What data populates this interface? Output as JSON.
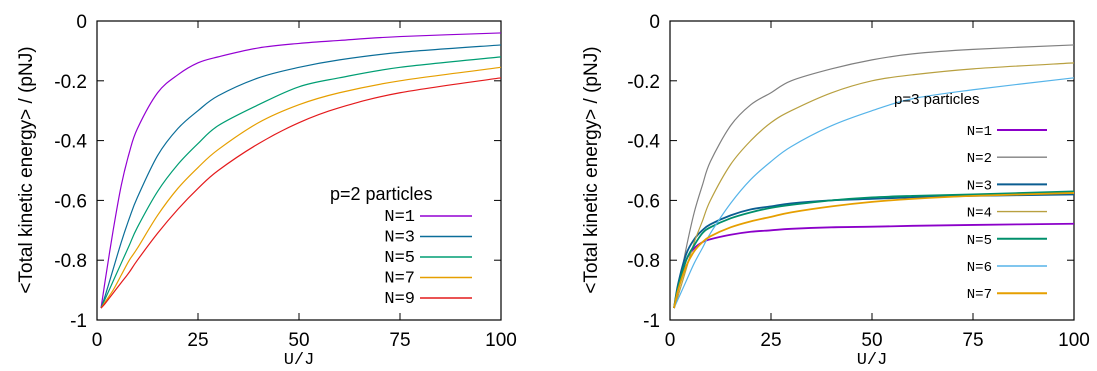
{
  "chart_data": [
    {
      "type": "line",
      "xlabel": "U/J",
      "ylabel": "<Total kinetic energy> / (pNJ)",
      "xlim": [
        0,
        100
      ],
      "ylim": [
        -1,
        0
      ],
      "xticks": [
        "0",
        "25",
        "50",
        "75",
        "100"
      ],
      "yticks": [
        "0",
        "-0.2",
        "-0.4",
        "-0.6",
        "-0.8",
        "-1"
      ],
      "legend_title": "p=2 particles",
      "legend_position": "lower-right",
      "grid": false,
      "series": [
        {
          "name": "N=1",
          "color": "#9400d3",
          "x": [
            1,
            2,
            4,
            6,
            8,
            10,
            15,
            20,
            25,
            30,
            40,
            50,
            60,
            75,
            100
          ],
          "y": [
            -0.96,
            -0.87,
            -0.7,
            -0.55,
            -0.44,
            -0.36,
            -0.24,
            -0.18,
            -0.14,
            -0.12,
            -0.09,
            -0.075,
            -0.065,
            -0.052,
            -0.04
          ]
        },
        {
          "name": "N=3",
          "color": "#0b6e99",
          "x": [
            1,
            2,
            4,
            6,
            8,
            10,
            15,
            20,
            25,
            30,
            40,
            50,
            60,
            75,
            100
          ],
          "y": [
            -0.96,
            -0.92,
            -0.83,
            -0.74,
            -0.66,
            -0.59,
            -0.45,
            -0.36,
            -0.3,
            -0.25,
            -0.19,
            -0.155,
            -0.13,
            -0.105,
            -0.08
          ]
        },
        {
          "name": "N=5",
          "color": "#009e73",
          "x": [
            1,
            2,
            4,
            6,
            8,
            10,
            15,
            20,
            25,
            30,
            40,
            50,
            60,
            75,
            100
          ],
          "y": [
            -0.96,
            -0.93,
            -0.87,
            -0.81,
            -0.75,
            -0.69,
            -0.57,
            -0.48,
            -0.41,
            -0.35,
            -0.28,
            -0.22,
            -0.19,
            -0.155,
            -0.12
          ]
        },
        {
          "name": "N=7",
          "color": "#e69f00",
          "x": [
            1,
            2,
            4,
            6,
            8,
            10,
            15,
            20,
            25,
            30,
            40,
            50,
            60,
            75,
            100
          ],
          "y": [
            -0.96,
            -0.94,
            -0.9,
            -0.85,
            -0.8,
            -0.76,
            -0.65,
            -0.56,
            -0.49,
            -0.43,
            -0.34,
            -0.28,
            -0.24,
            -0.2,
            -0.155
          ]
        },
        {
          "name": "N=9",
          "color": "#e41a1c",
          "x": [
            1,
            2,
            4,
            6,
            8,
            10,
            15,
            20,
            25,
            30,
            40,
            50,
            60,
            75,
            100
          ],
          "y": [
            -0.96,
            -0.945,
            -0.91,
            -0.875,
            -0.84,
            -0.8,
            -0.71,
            -0.63,
            -0.56,
            -0.5,
            -0.41,
            -0.34,
            -0.29,
            -0.24,
            -0.19
          ]
        }
      ]
    },
    {
      "type": "line",
      "xlabel": "U/J",
      "ylabel": "<Total kinetic energy> / (pNJ)",
      "xlim": [
        0,
        100
      ],
      "ylim": [
        -1,
        0
      ],
      "xticks": [
        "0",
        "25",
        "50",
        "75",
        "100"
      ],
      "yticks": [
        "0",
        "-0.2",
        "-0.4",
        "-0.6",
        "-0.8",
        "-1"
      ],
      "legend_title": "p=3 particles",
      "legend_position": "right",
      "grid": false,
      "series": [
        {
          "name": "N=1",
          "color": "#8b00c9",
          "x": [
            1,
            2,
            4,
            6,
            8,
            10,
            15,
            20,
            25,
            30,
            40,
            50,
            60,
            75,
            100
          ],
          "y": [
            -0.96,
            -0.9,
            -0.8,
            -0.76,
            -0.74,
            -0.73,
            -0.715,
            -0.705,
            -0.7,
            -0.695,
            -0.69,
            -0.688,
            -0.685,
            -0.682,
            -0.678
          ]
        },
        {
          "name": "N=2",
          "color": "#808080",
          "x": [
            1,
            2,
            4,
            6,
            8,
            10,
            15,
            20,
            25,
            30,
            40,
            50,
            60,
            75,
            100
          ],
          "y": [
            -0.96,
            -0.9,
            -0.76,
            -0.64,
            -0.55,
            -0.47,
            -0.35,
            -0.28,
            -0.24,
            -0.2,
            -0.16,
            -0.13,
            -0.11,
            -0.095,
            -0.08
          ]
        },
        {
          "name": "N=3",
          "color": "#0b5d91",
          "x": [
            1,
            2,
            4,
            6,
            8,
            10,
            15,
            20,
            25,
            30,
            40,
            50,
            60,
            75,
            100
          ],
          "y": [
            -0.96,
            -0.88,
            -0.78,
            -0.73,
            -0.7,
            -0.68,
            -0.65,
            -0.63,
            -0.62,
            -0.61,
            -0.6,
            -0.595,
            -0.59,
            -0.585,
            -0.58
          ]
        },
        {
          "name": "N=4",
          "color": "#b8a040",
          "x": [
            1,
            2,
            4,
            6,
            8,
            10,
            15,
            20,
            25,
            30,
            40,
            50,
            60,
            75,
            100
          ],
          "y": [
            -0.96,
            -0.92,
            -0.83,
            -0.74,
            -0.67,
            -0.6,
            -0.48,
            -0.4,
            -0.34,
            -0.3,
            -0.24,
            -0.2,
            -0.18,
            -0.16,
            -0.14
          ]
        },
        {
          "name": "N=5",
          "color": "#008f6b",
          "x": [
            1,
            2,
            4,
            6,
            8,
            10,
            15,
            20,
            25,
            30,
            40,
            50,
            60,
            75,
            100
          ],
          "y": [
            -0.96,
            -0.89,
            -0.8,
            -0.75,
            -0.71,
            -0.69,
            -0.66,
            -0.64,
            -0.625,
            -0.615,
            -0.6,
            -0.59,
            -0.585,
            -0.58,
            -0.57
          ]
        },
        {
          "name": "N=6",
          "color": "#56b4e9",
          "x": [
            1,
            2,
            4,
            6,
            8,
            10,
            15,
            20,
            25,
            30,
            40,
            50,
            60,
            75,
            100
          ],
          "y": [
            -0.96,
            -0.93,
            -0.87,
            -0.81,
            -0.76,
            -0.71,
            -0.61,
            -0.53,
            -0.47,
            -0.42,
            -0.35,
            -0.3,
            -0.26,
            -0.23,
            -0.19
          ]
        },
        {
          "name": "N=7",
          "color": "#e69f00",
          "x": [
            1,
            2,
            4,
            6,
            8,
            10,
            15,
            20,
            25,
            30,
            40,
            50,
            60,
            75,
            100
          ],
          "y": [
            -0.96,
            -0.9,
            -0.82,
            -0.77,
            -0.74,
            -0.72,
            -0.69,
            -0.67,
            -0.655,
            -0.64,
            -0.62,
            -0.605,
            -0.595,
            -0.585,
            -0.575
          ]
        }
      ]
    }
  ]
}
